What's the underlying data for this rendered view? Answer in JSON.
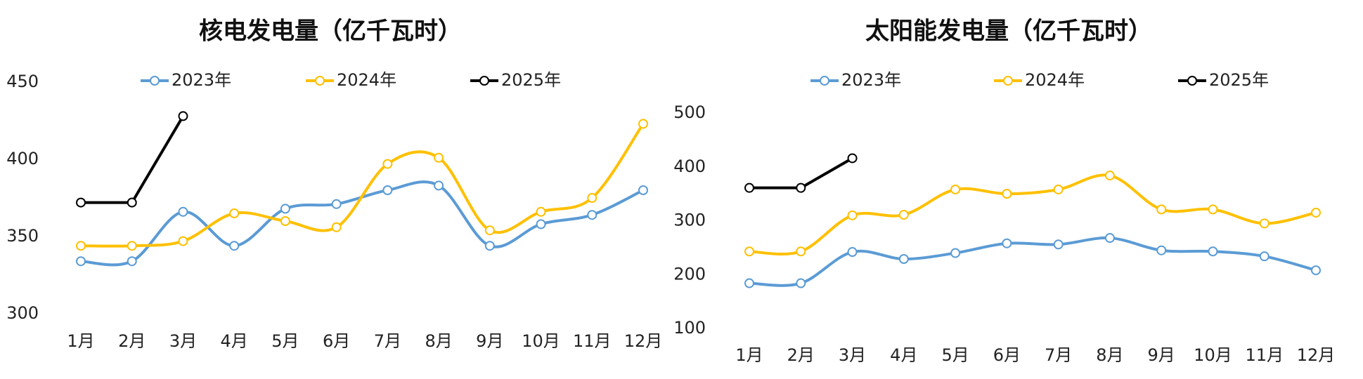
{
  "chart_data": [
    {
      "type": "line",
      "title": "核电发电量（亿千瓦时）",
      "categories": [
        "1月",
        "2月",
        "3月",
        "4月",
        "5月",
        "6月",
        "7月",
        "8月",
        "9月",
        "10月",
        "11月",
        "12月"
      ],
      "series": [
        {
          "name": "2023年",
          "color": "#5b9bd5",
          "values": [
            334,
            334,
            366,
            344,
            368,
            371,
            380,
            383,
            344,
            358,
            364,
            380
          ]
        },
        {
          "name": "2024年",
          "color": "#ffc000",
          "values": [
            344,
            344,
            347,
            365,
            360,
            356,
            397,
            401,
            354,
            366,
            375,
            423
          ]
        },
        {
          "name": "2025年",
          "color": "#000000",
          "values": [
            372,
            372,
            428,
            null,
            null,
            null,
            null,
            null,
            null,
            null,
            null,
            null
          ]
        }
      ],
      "ylim": [
        300,
        450
      ],
      "yticks": [
        300,
        350,
        400,
        450
      ],
      "grid": false,
      "legend": "top"
    },
    {
      "type": "line",
      "title": "太阳能发电量（亿千瓦时）",
      "categories": [
        "1月",
        "2月",
        "3月",
        "4月",
        "5月",
        "6月",
        "7月",
        "8月",
        "9月",
        "10月",
        "11月",
        "12月"
      ],
      "series": [
        {
          "name": "2023年",
          "color": "#5b9bd5",
          "values": [
            184,
            184,
            242,
            229,
            240,
            258,
            256,
            268,
            245,
            243,
            234,
            208
          ]
        },
        {
          "name": "2024年",
          "color": "#ffc000",
          "values": [
            243,
            243,
            310,
            311,
            358,
            350,
            358,
            384,
            321,
            321,
            295,
            315
          ]
        },
        {
          "name": "2025年",
          "color": "#000000",
          "values": [
            361,
            361,
            416,
            null,
            null,
            null,
            null,
            null,
            null,
            null,
            null,
            null
          ]
        }
      ],
      "ylim": [
        100,
        500
      ],
      "yticks": [
        100,
        200,
        300,
        400,
        500
      ],
      "grid": false,
      "legend": "top"
    }
  ]
}
